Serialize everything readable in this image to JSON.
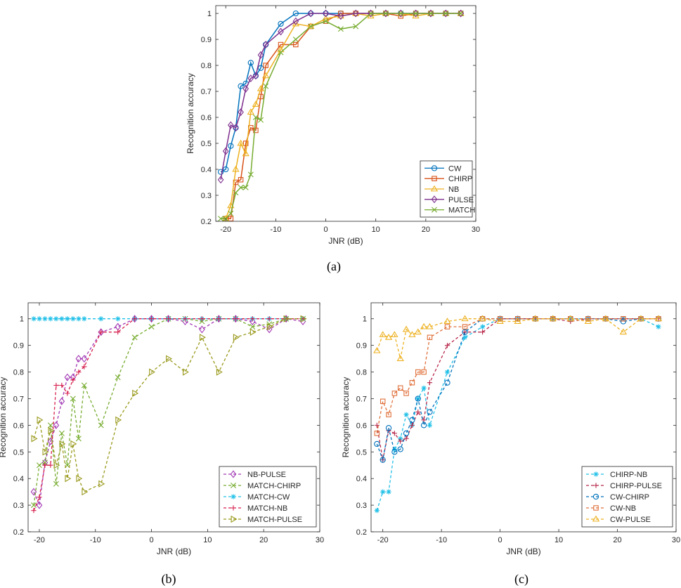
{
  "chart_data": [
    {
      "type": "line",
      "panel": "(a)",
      "caption": "(a)",
      "xlabel": "JNR (dB)",
      "ylabel": "Recognition accuracy",
      "xlim": [
        -22,
        30
      ],
      "ylim": [
        0.2,
        1.03
      ],
      "xticks": [
        -20,
        -10,
        0,
        10,
        20,
        30
      ],
      "yticks": [
        0.2,
        0.3,
        0.4,
        0.5,
        0.6,
        0.7,
        0.8,
        0.9,
        1
      ],
      "legend_position": "bottom-right",
      "series": [
        {
          "name": "CW",
          "color": "#0072BD",
          "marker": "circle",
          "dash": "solid",
          "x": [
            -21,
            -20,
            -19,
            -18,
            -17,
            -16,
            -15,
            -14,
            -13,
            -12,
            -9,
            -6,
            -3,
            0,
            3,
            6,
            9,
            12,
            15,
            18,
            21,
            24,
            27
          ],
          "y": [
            0.39,
            0.4,
            0.49,
            0.56,
            0.72,
            0.73,
            0.81,
            0.76,
            0.79,
            0.88,
            0.96,
            1.0,
            1.0,
            1.0,
            1.0,
            1.0,
            1.0,
            1.0,
            1.0,
            1.0,
            1.0,
            1.0,
            1.0
          ]
        },
        {
          "name": "CHIRP",
          "color": "#D95319",
          "marker": "square",
          "dash": "solid",
          "x": [
            -20,
            -19,
            -18,
            -17,
            -16,
            -15,
            -14,
            -13,
            -12,
            -9,
            -6,
            -3,
            0,
            3,
            6,
            9,
            12,
            15,
            18,
            21,
            24,
            27
          ],
          "y": [
            0.21,
            0.21,
            0.35,
            0.36,
            0.5,
            0.56,
            0.55,
            0.68,
            0.8,
            0.88,
            0.88,
            0.95,
            0.97,
            1.0,
            1.0,
            1.0,
            1.0,
            0.99,
            1.0,
            1.0,
            1.0,
            1.0
          ]
        },
        {
          "name": "NB",
          "color": "#EDB120",
          "marker": "triangle",
          "dash": "solid",
          "x": [
            -20,
            -19,
            -18,
            -17,
            -16,
            -15,
            -14,
            -13,
            -12,
            -9,
            -6,
            -3,
            0,
            3,
            6,
            9,
            12,
            15,
            18,
            21,
            24,
            27
          ],
          "y": [
            0.21,
            0.26,
            0.4,
            0.5,
            0.46,
            0.62,
            0.65,
            0.71,
            0.76,
            0.86,
            0.96,
            0.95,
            0.98,
            0.99,
            1.0,
            0.99,
            1.0,
            1.0,
            0.99,
            1.0,
            1.0,
            1.0
          ]
        },
        {
          "name": "PULSE",
          "color": "#7E2F8E",
          "marker": "diamond",
          "dash": "solid",
          "x": [
            -21,
            -20,
            -19,
            -18,
            -17,
            -16,
            -15,
            -14,
            -13,
            -12,
            -9,
            -6,
            -3,
            0,
            3,
            6,
            9,
            12,
            15,
            18,
            21,
            24,
            27
          ],
          "y": [
            0.36,
            0.47,
            0.57,
            0.56,
            0.62,
            0.71,
            0.75,
            0.76,
            0.84,
            0.88,
            0.93,
            0.97,
            1.0,
            1.0,
            0.99,
            1.0,
            1.0,
            1.0,
            1.0,
            1.0,
            1.0,
            1.0,
            1.0
          ]
        },
        {
          "name": "MATCH",
          "color": "#77AC30",
          "marker": "x",
          "dash": "solid",
          "x": [
            -21,
            -20,
            -19,
            -18,
            -17,
            -16,
            -15,
            -14,
            -13,
            -12,
            -9,
            -6,
            -3,
            0,
            3,
            6,
            9,
            12,
            15,
            18,
            21,
            24,
            27
          ],
          "y": [
            0.21,
            0.21,
            0.23,
            0.31,
            0.33,
            0.33,
            0.38,
            0.6,
            0.59,
            0.72,
            0.85,
            0.9,
            0.95,
            0.97,
            0.94,
            0.95,
            1.0,
            1.0,
            1.0,
            1.0,
            1.0,
            1.0,
            1.0
          ]
        }
      ]
    },
    {
      "type": "line",
      "panel": "(b)",
      "caption": "(b)",
      "xlabel": "JNR (dB)",
      "ylabel": "Recognition accuracy",
      "xlim": [
        -22,
        30
      ],
      "ylim": [
        0.2,
        1.06
      ],
      "xticks": [
        -20,
        -10,
        0,
        10,
        20,
        30
      ],
      "yticks": [
        0.2,
        0.3,
        0.4,
        0.5,
        0.6,
        0.7,
        0.8,
        0.9,
        1
      ],
      "legend_position": "bottom-right",
      "series": [
        {
          "name": "NB-PULSE",
          "color": "#A33AB5",
          "marker": "diamond",
          "dash": "dashed",
          "x": [
            -21,
            -20,
            -19,
            -18,
            -17,
            -16,
            -15,
            -14,
            -13,
            -12,
            -9,
            -6,
            -3,
            0,
            3,
            6,
            9,
            12,
            15,
            18,
            21,
            24,
            27
          ],
          "y": [
            0.35,
            0.3,
            0.46,
            0.54,
            0.6,
            0.69,
            0.78,
            0.78,
            0.85,
            0.85,
            0.95,
            0.97,
            1.0,
            1.0,
            1.0,
            0.99,
            0.96,
            1.0,
            1.0,
            0.99,
            0.96,
            1.0,
            0.99
          ]
        },
        {
          "name": "MATCH-CHIRP",
          "color": "#77AC30",
          "marker": "x",
          "dash": "dashed",
          "x": [
            -21,
            -20,
            -19,
            -18,
            -17,
            -16,
            -15,
            -14,
            -13,
            -12,
            -9,
            -6,
            -3,
            0,
            3,
            6,
            9,
            12,
            15,
            18,
            21,
            24,
            27
          ],
          "y": [
            0.3,
            0.45,
            0.46,
            0.6,
            0.38,
            0.57,
            0.45,
            0.7,
            0.55,
            0.75,
            0.6,
            0.78,
            0.93,
            0.97,
            1.0,
            1.0,
            0.99,
            1.0,
            1.0,
            0.97,
            0.98,
            1.0,
            1.0
          ]
        },
        {
          "name": "MATCH-CW",
          "color": "#20C0E8",
          "marker": "star",
          "dash": "dashed",
          "x": [
            -21,
            -20,
            -19,
            -18,
            -17,
            -16,
            -15,
            -14,
            -13,
            -12,
            -9,
            -6,
            -3,
            0,
            3,
            6,
            9,
            12,
            15,
            18,
            21,
            24,
            27
          ],
          "y": [
            1.0,
            1.0,
            1.0,
            1.0,
            1.0,
            1.0,
            1.0,
            1.0,
            1.0,
            1.0,
            1.0,
            1.0,
            1.0,
            1.0,
            1.0,
            1.0,
            1.0,
            1.0,
            1.0,
            1.0,
            1.0,
            1.0,
            1.0
          ]
        },
        {
          "name": "MATCH-NB",
          "color": "#D61E4C",
          "marker": "plus",
          "dash": "dashed",
          "x": [
            -21,
            -20,
            -19,
            -18,
            -17,
            -16,
            -15,
            -14,
            -13,
            -12,
            -9,
            -6,
            -3,
            0,
            3,
            6,
            9,
            12,
            15,
            18,
            21,
            24,
            27
          ],
          "y": [
            0.28,
            0.33,
            0.45,
            0.45,
            0.75,
            0.75,
            0.72,
            0.77,
            0.8,
            0.82,
            0.95,
            0.95,
            1.0,
            1.0,
            1.0,
            1.0,
            1.0,
            1.0,
            1.0,
            1.0,
            1.0,
            1.0,
            1.0
          ]
        },
        {
          "name": "MATCH-PULSE",
          "color": "#9A9A1E",
          "marker": "triangle-right",
          "dash": "dashed",
          "x": [
            -21,
            -20,
            -19,
            -18,
            -17,
            -16,
            -15,
            -14,
            -13,
            -12,
            -9,
            -6,
            -3,
            0,
            3,
            6,
            9,
            12,
            15,
            18,
            21,
            24,
            27
          ],
          "y": [
            0.55,
            0.62,
            0.5,
            0.58,
            0.45,
            0.53,
            0.4,
            0.53,
            0.4,
            0.35,
            0.38,
            0.62,
            0.72,
            0.8,
            0.85,
            0.8,
            0.93,
            0.8,
            0.93,
            0.95,
            0.97,
            1.0,
            1.0
          ]
        }
      ]
    },
    {
      "type": "line",
      "panel": "(c)",
      "caption": "(c)",
      "xlabel": "JNR (dB)",
      "ylabel": "Recognition accuracy",
      "xlim": [
        -22,
        30
      ],
      "ylim": [
        0.2,
        1.06
      ],
      "xticks": [
        -20,
        -10,
        0,
        10,
        20,
        30
      ],
      "yticks": [
        0.2,
        0.3,
        0.4,
        0.5,
        0.6,
        0.7,
        0.8,
        0.9,
        1
      ],
      "legend_position": "bottom-right",
      "series": [
        {
          "name": "CHIRP-NB",
          "color": "#20C0E8",
          "marker": "star",
          "dash": "dashed",
          "x": [
            -21,
            -20,
            -19,
            -18,
            -17,
            -16,
            -15,
            -14,
            -13,
            -12,
            -9,
            -6,
            -3,
            0,
            3,
            6,
            9,
            12,
            15,
            18,
            21,
            24,
            27
          ],
          "y": [
            0.28,
            0.35,
            0.35,
            0.51,
            0.55,
            0.64,
            0.6,
            0.7,
            0.74,
            0.6,
            0.8,
            0.93,
            0.97,
            1.0,
            1.0,
            1.0,
            1.0,
            1.0,
            1.0,
            1.0,
            1.0,
            1.0,
            0.97
          ]
        },
        {
          "name": "CHIRP-PULSE",
          "color": "#B8274A",
          "marker": "plus",
          "dash": "dashed",
          "x": [
            -21,
            -20,
            -19,
            -18,
            -17,
            -16,
            -15,
            -14,
            -13,
            -12,
            -9,
            -6,
            -3,
            0,
            3,
            6,
            9,
            12,
            15,
            18,
            21,
            24,
            27
          ],
          "y": [
            0.6,
            0.47,
            0.58,
            0.57,
            0.54,
            0.55,
            0.6,
            0.65,
            0.62,
            0.76,
            0.9,
            0.95,
            0.95,
            1.0,
            1.0,
            1.0,
            1.0,
            0.99,
            1.0,
            1.0,
            1.0,
            1.0,
            1.0
          ]
        },
        {
          "name": "CW-CHIRP",
          "color": "#0072BD",
          "marker": "circle",
          "dash": "dashed",
          "x": [
            -21,
            -20,
            -19,
            -18,
            -17,
            -16,
            -15,
            -14,
            -13,
            -12,
            -9,
            -6,
            -3,
            0,
            3,
            6,
            9,
            12,
            15,
            18,
            21,
            24,
            27
          ],
          "y": [
            0.53,
            0.47,
            0.59,
            0.5,
            0.51,
            0.57,
            0.62,
            0.7,
            0.6,
            0.65,
            0.76,
            0.95,
            1.0,
            1.0,
            1.0,
            1.0,
            1.0,
            1.0,
            1.0,
            1.0,
            0.99,
            1.0,
            1.0
          ]
        },
        {
          "name": "CW-NB",
          "color": "#E0703A",
          "marker": "square",
          "dash": "dashed",
          "x": [
            -21,
            -20,
            -19,
            -18,
            -17,
            -16,
            -15,
            -14,
            -13,
            -12,
            -9,
            -6,
            -3,
            0,
            3,
            6,
            9,
            12,
            15,
            18,
            21,
            24,
            27
          ],
          "y": [
            0.57,
            0.69,
            0.64,
            0.72,
            0.74,
            0.72,
            0.76,
            0.8,
            0.8,
            0.93,
            0.97,
            0.97,
            1.0,
            1.0,
            1.0,
            1.0,
            1.0,
            1.0,
            1.0,
            1.0,
            1.0,
            1.0,
            1.0
          ]
        },
        {
          "name": "CW-PULSE",
          "color": "#EDB120",
          "marker": "triangle",
          "dash": "dashed",
          "x": [
            -21,
            -20,
            -19,
            -18,
            -17,
            -16,
            -15,
            -14,
            -13,
            -12,
            -9,
            -6,
            -3,
            0,
            3,
            6,
            9,
            12,
            15,
            18,
            21,
            24,
            27
          ],
          "y": [
            0.88,
            0.94,
            0.93,
            0.94,
            0.85,
            0.96,
            0.94,
            0.95,
            0.97,
            0.97,
            0.99,
            1.0,
            1.0,
            0.99,
            0.99,
            1.0,
            1.0,
            1.0,
            0.99,
            1.0,
            0.95,
            1.0,
            1.0
          ]
        }
      ]
    }
  ]
}
